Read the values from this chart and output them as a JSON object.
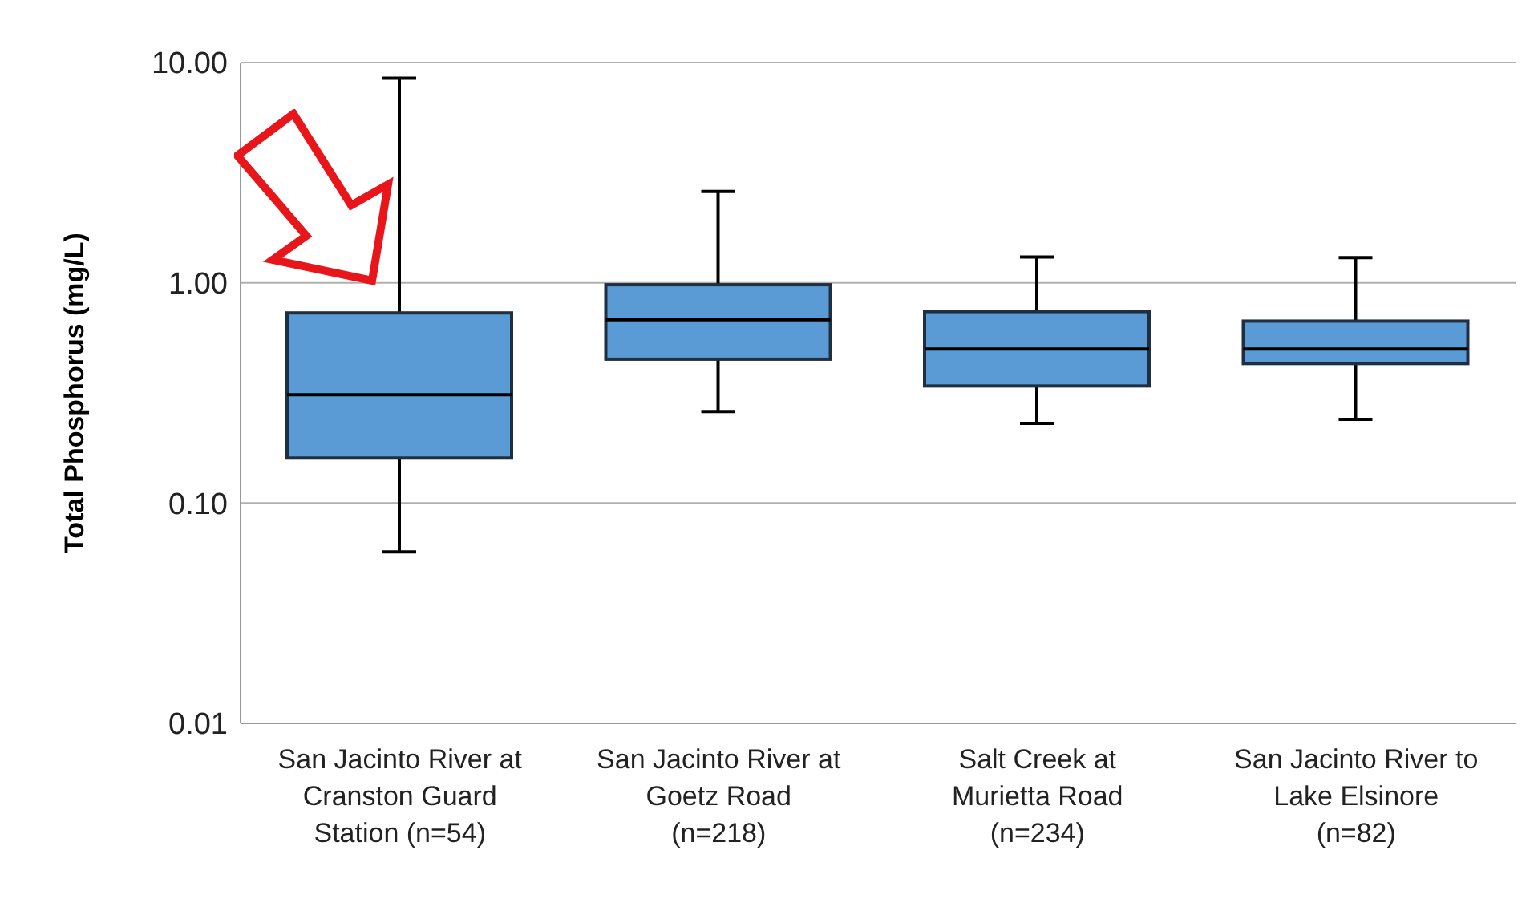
{
  "chart_data": {
    "type": "box",
    "ylabel": "Total Phosphorus (mg/L)",
    "categories": [
      "San Jacinto River at\nCranston Guard\nStation (n=54)",
      "San Jacinto River at\nGoetz Road\n(n=218)",
      "Salt Creek at\nMurietta Road\n(n=234)",
      "San Jacinto River to\nLake Elsinore\n(n=82)"
    ],
    "boxes": [
      {
        "low": 0.06,
        "q1": 0.16,
        "median": 0.31,
        "q3": 0.73,
        "high": 8.5
      },
      {
        "low": 0.26,
        "q1": 0.45,
        "median": 0.68,
        "q3": 0.98,
        "high": 2.6
      },
      {
        "low": 0.23,
        "q1": 0.34,
        "median": 0.5,
        "q3": 0.74,
        "high": 1.31
      },
      {
        "low": 0.24,
        "q1": 0.43,
        "median": 0.5,
        "q3": 0.67,
        "high": 1.3
      }
    ],
    "color": "#5b9bd5",
    "log": "y",
    "ylim": [
      0.01,
      10
    ],
    "yticks": [
      {
        "value": 0.01,
        "label": "0.01"
      },
      {
        "value": 0.1,
        "label": "0.10"
      },
      {
        "value": 1,
        "label": "1.00"
      },
      {
        "value": 10,
        "label": "10.00"
      }
    ],
    "grid": "y"
  }
}
